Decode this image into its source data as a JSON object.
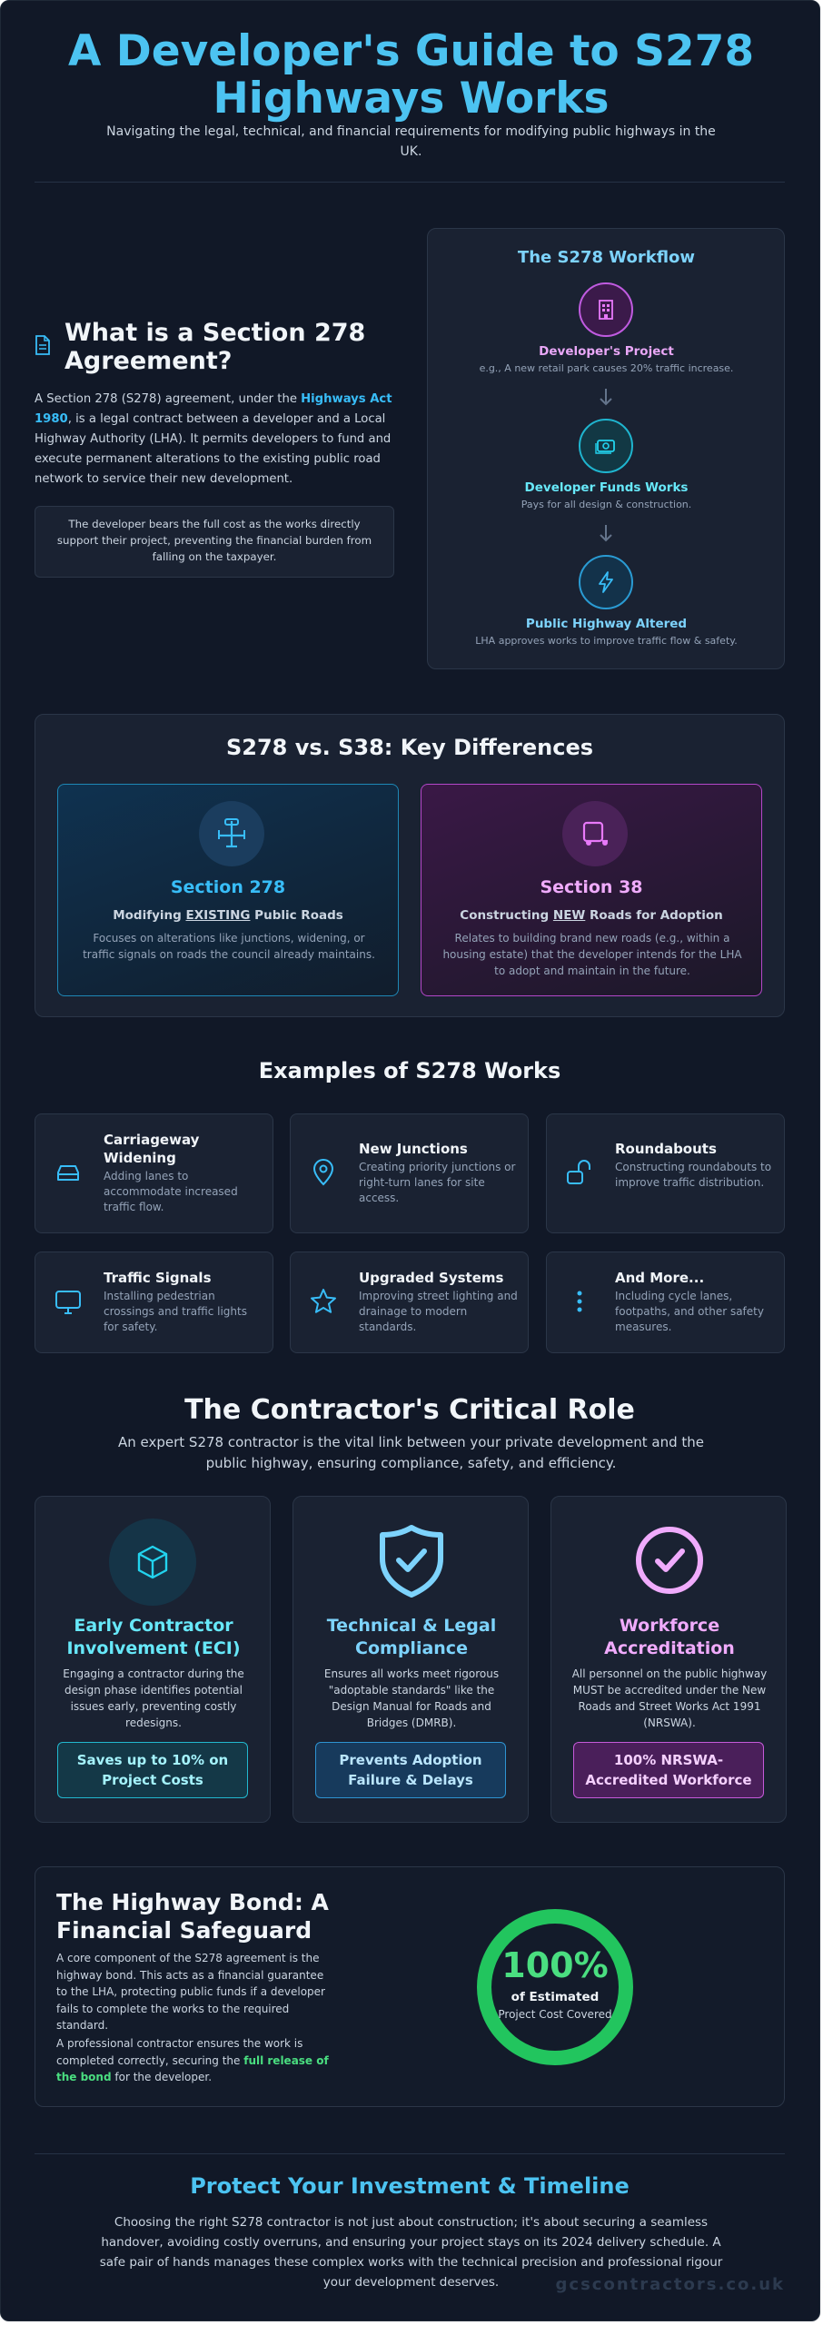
{
  "header": {
    "title": "A Developer's Guide to S278 Highways Works",
    "subtitle": "Navigating the legal, technical, and financial requirements for modifying public highways in the UK."
  },
  "intro": {
    "heading": "What is a Section 278 Agreement?",
    "para_before": "A Section 278 (S278) agreement, under the ",
    "para_highlight": "Highways Act 1980",
    "para_after": ", is a legal contract between a developer and a Local Highway Authority (LHA). It permits developers to fund and execute permanent alterations to the existing public road network to service their new development.",
    "note": "The developer bears the full cost as the works directly support their project, preventing the financial burden from falling on the taxpayer."
  },
  "workflow": {
    "title": "The S278 Workflow",
    "steps": [
      {
        "label": "Developer's Project",
        "desc": "e.g., A new retail park causes 20% traffic increase.",
        "icon": "building-icon",
        "color": "#e879f9"
      },
      {
        "label": "Developer Funds Works",
        "desc": "Pays for all design & construction.",
        "icon": "money-icon",
        "color": "#22d3ee"
      },
      {
        "label": "Public Highway Altered",
        "desc": "LHA approves works to improve traffic flow & safety.",
        "icon": "bolt-icon",
        "color": "#38bdf8"
      }
    ]
  },
  "differences": {
    "title": "S278 vs. S38: Key Differences",
    "s278": {
      "heading": "Section 278",
      "sub_before": "Modifying ",
      "sub_em": "EXISTING",
      "sub_after": " Public Roads",
      "desc": "Focuses on alterations like junctions, widening, or traffic signals on roads the council already maintains."
    },
    "s38": {
      "heading": "Section 38",
      "sub_before": "Constructing ",
      "sub_em": "NEW",
      "sub_after": " Roads for Adoption",
      "desc": "Relates to building brand new roads (e.g., within a housing estate) that the developer intends for the LHA to adopt and maintain in the future."
    }
  },
  "examples": {
    "title": "Examples of S278 Works",
    "items": [
      {
        "title": "Carriageway Widening",
        "desc": "Adding lanes to accommodate increased traffic flow.",
        "icon": "car-icon"
      },
      {
        "title": "New Junctions",
        "desc": "Creating priority junctions or right-turn lanes for site access.",
        "icon": "map-pin-icon"
      },
      {
        "title": "Roundabouts",
        "desc": "Constructing roundabouts to improve traffic distribution.",
        "icon": "padlock-icon"
      },
      {
        "title": "Traffic Signals",
        "desc": "Installing pedestrian crossings and traffic lights for safety.",
        "icon": "monitor-icon"
      },
      {
        "title": "Upgraded Systems",
        "desc": "Improving street lighting and drainage to modern standards.",
        "icon": "star-icon"
      },
      {
        "title": "And More...",
        "desc": "Including cycle lanes, footpaths, and other safety measures.",
        "icon": "more-icon"
      }
    ]
  },
  "contractor": {
    "title": "The Contractor's Critical Role",
    "subtitle": "An expert S278 contractor is the vital link between your private development and the public highway, ensuring compliance, safety, and efficiency.",
    "cards": [
      {
        "title": "Early Contractor Involvement (ECI)",
        "desc": "Engaging a contractor during the design phase identifies potential issues early, preventing costly redesigns.",
        "badge": "Saves up to 10% on Project Costs",
        "icon": "cube-icon"
      },
      {
        "title": "Technical & Legal Compliance",
        "desc": "Ensures all works meet rigorous \"adoptable standards\" like the Design Manual for Roads and Bridges (DMRB).",
        "badge": "Prevents Adoption Failure & Delays",
        "icon": "shield-check-icon"
      },
      {
        "title": "Workforce Accreditation",
        "desc": "All personnel on the public highway MUST be accredited under the New Roads and Street Works Act 1991 (NRSWA).",
        "badge": "100% NRSWA-Accredited Workforce",
        "icon": "check-circle-icon"
      }
    ]
  },
  "bond": {
    "title": "The Highway Bond: A Financial Safeguard",
    "para1": "A core component of the S278 agreement is the highway bond. This acts as a financial guarantee to the LHA, protecting public funds if a developer fails to complete the works to the required standard.",
    "para2_before": "A professional contractor ensures the work is completed correctly, securing the ",
    "para2_highlight": "full release of the bond",
    "para2_after": " for the developer.",
    "gauge_value": "100%",
    "gauge_fraction": 1.0,
    "gauge_line1": "of Estimated",
    "gauge_line2": "Project Cost Covered"
  },
  "footer": {
    "title": "Protect Your Investment & Timeline",
    "text": "Choosing the right S278 contractor is not just about construction; it's about securing a seamless handover, avoiding costly overruns, and ensuring your project stays on its 2024 delivery schedule. A safe pair of hands manages these complex works with the technical precision and professional rigour your development deserves.",
    "watermark": "gcscontractors.co.uk"
  },
  "colors": {
    "background": "#111827",
    "accent_blue": "#4cc3f1",
    "accent_pink": "#e879f9",
    "accent_green": "#22c55e"
  }
}
